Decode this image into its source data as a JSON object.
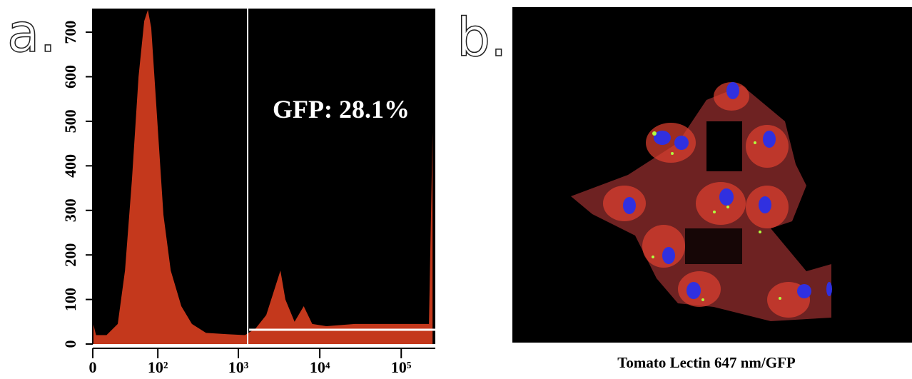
{
  "chart_data": {
    "type": "histogram-area",
    "panel_label": "a.",
    "annotation": "GFP: 28.1%",
    "color": "#c4381c",
    "xscale": "biexponential",
    "x": [
      0,
      3,
      13,
      25,
      34,
      44,
      55,
      66,
      74,
      82,
      96,
      118,
      146,
      198,
      268,
      400,
      733,
      1206,
      1630,
      2200,
      2856,
      3286,
      3780,
      4900,
      6350,
      8080,
      12060,
      26900,
      60000,
      133700,
      219000,
      242500
    ],
    "values": [
      50,
      20,
      20,
      45,
      165,
      370,
      600,
      725,
      750,
      710,
      530,
      290,
      165,
      85,
      45,
      25,
      22,
      20,
      35,
      65,
      130,
      165,
      100,
      50,
      85,
      45,
      40,
      45,
      45,
      45,
      45,
      475
    ],
    "gate": 1300,
    "xlim": [
      0,
      262144
    ],
    "xticks": [
      0,
      {
        "value": 100,
        "label": "10²"
      },
      {
        "value": 1000,
        "label": "10³"
      },
      {
        "value": 10000,
        "label": "10⁴"
      },
      {
        "value": 100000,
        "label": "10⁵"
      }
    ],
    "ylim": [
      0,
      753
    ],
    "yticks": [
      0,
      100,
      200,
      300,
      400,
      500,
      600,
      700
    ]
  },
  "image_panel": {
    "panel_label": "b.",
    "caption": "Tomato Lectin 647 nm/GFP"
  }
}
